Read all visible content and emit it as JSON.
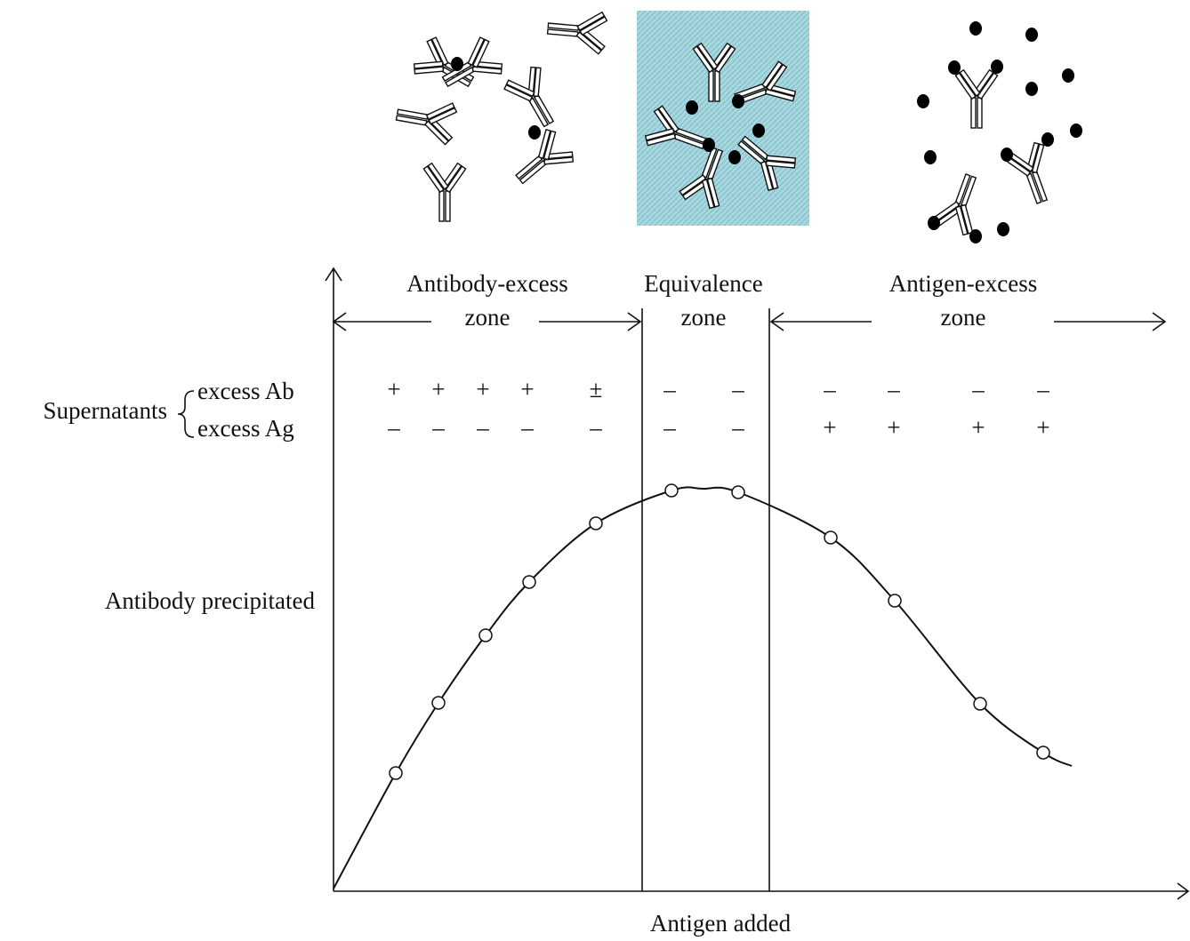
{
  "zones": [
    {
      "title": "Antibody-excess",
      "subtitle": "zone"
    },
    {
      "title": "Equivalence",
      "subtitle": "zone"
    },
    {
      "title": "Antigen-excess",
      "subtitle": "zone"
    }
  ],
  "supernatants": {
    "label": "Supernatants",
    "rows": [
      {
        "label": "excess Ab",
        "signs": [
          "+",
          "+",
          "+",
          "+",
          "±",
          "–",
          "–",
          "–",
          "–",
          "–",
          "–"
        ]
      },
      {
        "label": "excess Ag",
        "signs": [
          "–",
          "–",
          "–",
          "–",
          "–",
          "–",
          "–",
          "+",
          "+",
          "+",
          "+"
        ]
      }
    ]
  },
  "y_axis_label": "Antibody precipitated",
  "x_axis_label": "Antigen added"
}
